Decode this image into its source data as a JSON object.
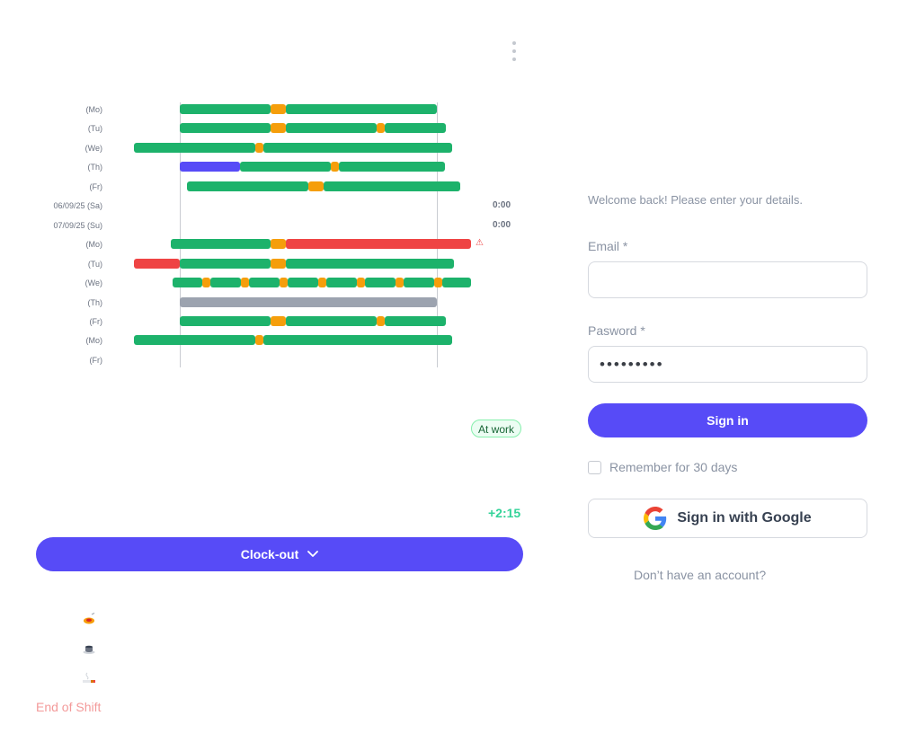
{
  "menu": {
    "icon": "more-vertical-icon"
  },
  "timeline": {
    "rows": [
      {
        "label": "(Mo)",
        "total": "",
        "warning": false,
        "segments": [
          {
            "start": 200,
            "end": 301,
            "type": "work"
          },
          {
            "start": 301,
            "end": 318,
            "type": "break"
          },
          {
            "start": 318,
            "end": 486,
            "type": "work"
          }
        ]
      },
      {
        "label": "(Tu)",
        "total": "",
        "warning": false,
        "segments": [
          {
            "start": 200,
            "end": 301,
            "type": "work"
          },
          {
            "start": 301,
            "end": 318,
            "type": "break"
          },
          {
            "start": 318,
            "end": 419,
            "type": "work"
          },
          {
            "start": 419,
            "end": 428,
            "type": "break"
          },
          {
            "start": 428,
            "end": 496,
            "type": "work"
          }
        ]
      },
      {
        "label": "(We)",
        "total": "",
        "warning": false,
        "segments": [
          {
            "start": 149,
            "end": 284,
            "type": "work"
          },
          {
            "start": 284,
            "end": 293,
            "type": "break"
          },
          {
            "start": 293,
            "end": 503,
            "type": "work"
          }
        ]
      },
      {
        "label": "(Th)",
        "total": "",
        "warning": false,
        "segments": [
          {
            "start": 200,
            "end": 267,
            "type": "special"
          },
          {
            "start": 267,
            "end": 368,
            "type": "work"
          },
          {
            "start": 368,
            "end": 377,
            "type": "break"
          },
          {
            "start": 377,
            "end": 495,
            "type": "work"
          }
        ]
      },
      {
        "label": "(Fr)",
        "total": "",
        "warning": false,
        "segments": [
          {
            "start": 208,
            "end": 343,
            "type": "work"
          },
          {
            "start": 343,
            "end": 360,
            "type": "break"
          },
          {
            "start": 360,
            "end": 512,
            "type": "work"
          }
        ]
      },
      {
        "label": "06/09/25 (Sa)",
        "total": "0:00",
        "warning": false,
        "segments": []
      },
      {
        "label": "07/09/25 (Su)",
        "total": "0:00",
        "warning": false,
        "segments": []
      },
      {
        "label": "(Mo)",
        "total": "",
        "warning": true,
        "segments": [
          {
            "start": 190,
            "end": 301,
            "type": "work"
          },
          {
            "start": 301,
            "end": 318,
            "type": "break"
          },
          {
            "start": 318,
            "end": 524,
            "type": "overtime"
          }
        ]
      },
      {
        "label": "(Tu)",
        "total": "",
        "warning": false,
        "segments": [
          {
            "start": 149,
            "end": 200,
            "type": "overtime"
          },
          {
            "start": 200,
            "end": 301,
            "type": "work"
          },
          {
            "start": 301,
            "end": 318,
            "type": "break"
          },
          {
            "start": 318,
            "end": 505,
            "type": "work"
          }
        ]
      },
      {
        "label": "(We)",
        "total": "",
        "warning": false,
        "segments": [
          {
            "start": 192,
            "end": 225,
            "type": "work"
          },
          {
            "start": 225,
            "end": 234,
            "type": "break"
          },
          {
            "start": 234,
            "end": 268,
            "type": "work"
          },
          {
            "start": 268,
            "end": 277,
            "type": "break"
          },
          {
            "start": 277,
            "end": 311,
            "type": "work"
          },
          {
            "start": 311,
            "end": 320,
            "type": "break"
          },
          {
            "start": 320,
            "end": 354,
            "type": "work"
          },
          {
            "start": 354,
            "end": 363,
            "type": "break"
          },
          {
            "start": 363,
            "end": 397,
            "type": "work"
          },
          {
            "start": 397,
            "end": 406,
            "type": "break"
          },
          {
            "start": 406,
            "end": 440,
            "type": "work"
          },
          {
            "start": 440,
            "end": 449,
            "type": "break"
          },
          {
            "start": 449,
            "end": 483,
            "type": "work"
          },
          {
            "start": 483,
            "end": 492,
            "type": "break"
          },
          {
            "start": 492,
            "end": 524,
            "type": "work"
          }
        ]
      },
      {
        "label": "(Th)",
        "total": "",
        "warning": false,
        "segments": [
          {
            "start": 200,
            "end": 486,
            "type": "absence"
          }
        ]
      },
      {
        "label": "(Fr)",
        "total": "",
        "warning": false,
        "segments": [
          {
            "start": 200,
            "end": 301,
            "type": "work"
          },
          {
            "start": 301,
            "end": 318,
            "type": "break"
          },
          {
            "start": 318,
            "end": 419,
            "type": "work"
          },
          {
            "start": 419,
            "end": 428,
            "type": "break"
          },
          {
            "start": 428,
            "end": 496,
            "type": "work"
          }
        ]
      },
      {
        "label": "(Mo)",
        "total": "",
        "warning": false,
        "segments": [
          {
            "start": 149,
            "end": 284,
            "type": "work"
          },
          {
            "start": 284,
            "end": 293,
            "type": "break"
          },
          {
            "start": 293,
            "end": 503,
            "type": "work"
          }
        ]
      },
      {
        "label": "(Fr)",
        "total": "",
        "warning": false,
        "segments": []
      }
    ],
    "colors": {
      "work": "#1db26b",
      "break": "#f59e0b",
      "overtime": "#ef4444",
      "special": "#574bf7",
      "absence": "#9ca3af"
    },
    "warning_icon": "warning-icon"
  },
  "status": {
    "badge": "At work",
    "diff": "+2:15"
  },
  "clockout": {
    "label": "Clock-out",
    "icon": "chevron-down-icon"
  },
  "breaks": [
    {
      "name": "break-meal-icon",
      "glyph": "🍝"
    },
    {
      "name": "break-coffee-icon",
      "glyph": "☕"
    },
    {
      "name": "break-smoke-icon",
      "glyph": "🚬"
    }
  ],
  "end_shift": "End of Shift",
  "login": {
    "welcome": "Welcome back! Please enter your details.",
    "email_label": "Email *",
    "email_value": "",
    "password_label": "Pasword *",
    "password_dots": "•••••••••",
    "signin_label": "Sign in",
    "remember_label": "Remember for 30 days",
    "google_label": "Sign in with Google",
    "google_icon": "google-icon",
    "no_account": "Don’t have an account?"
  }
}
